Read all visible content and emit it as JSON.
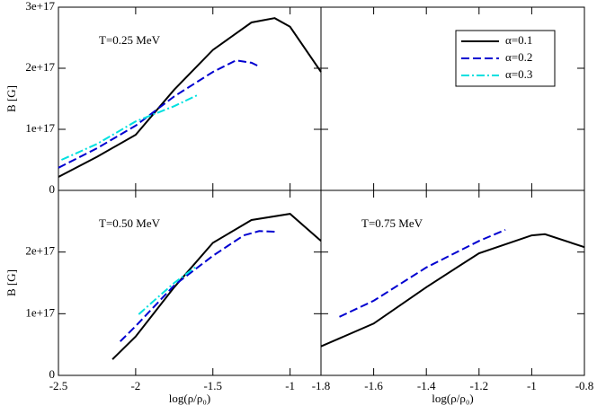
{
  "chart_data": [
    {
      "type": "line",
      "annotation": "T=0.25 MeV",
      "ylabel": "B [G]",
      "xlim": [
        -2.5,
        -0.8
      ],
      "ylim": [
        0,
        3e+17
      ],
      "yticks": [
        0,
        {
          "value": 1e+17,
          "label": "1e+17"
        },
        {
          "value": 2e+17,
          "label": "2e+17"
        },
        {
          "value": 3e+17,
          "label": "3e+17"
        }
      ],
      "series": [
        {
          "name": "α=0.1",
          "color": "#000000",
          "style": "solid",
          "x": [
            -2.5,
            -2.25,
            -2,
            -1.75,
            -1.5,
            -1.25,
            -1.1,
            -1,
            -0.8
          ],
          "values": [
            2.2e+16,
            5.5e+16,
            9.1e+16,
            1.65e+17,
            2.3e+17,
            2.75e+17,
            2.82e+17,
            2.68e+17,
            1.94e+17
          ]
        },
        {
          "name": "α=0.2",
          "color": "#0000d0",
          "style": "dashed",
          "x": [
            -2.5,
            -2.25,
            -2,
            -1.75,
            -1.5,
            -1.35,
            -1.25,
            -1.2
          ],
          "values": [
            3.7e+16,
            6.9e+16,
            1.06e+17,
            1.54e+17,
            1.94e+17,
            2.13e+17,
            2.09e+17,
            2.03e+17
          ]
        },
        {
          "name": "α=0.3",
          "color": "#00e0e0",
          "style": "dashdot",
          "x": [
            -2.48,
            -2.25,
            -2,
            -1.75,
            -1.6
          ],
          "values": [
            5e+16,
            7.6e+16,
            1.13e+17,
            1.38e+17,
            1.56e+17
          ]
        }
      ]
    },
    {
      "type": "line",
      "annotation": "T=0.50 MeV",
      "ylabel": "B [G]",
      "xlabel": "log(ρ/ρ₀)",
      "xlim": [
        -2.5,
        -0.8
      ],
      "ylim": [
        0,
        3e+17
      ],
      "xticks": [
        -2.5,
        -2,
        -1.5,
        -1
      ],
      "yticks": [
        0,
        {
          "value": 1e+17,
          "label": "1e+17"
        },
        {
          "value": 2e+17,
          "label": "2e+17"
        }
      ],
      "series": [
        {
          "color": "#000000",
          "style": "solid",
          "x": [
            -2.15,
            -2,
            -1.75,
            -1.5,
            -1.25,
            -1.0,
            -0.8
          ],
          "values": [
            2.6e+16,
            6.3e+16,
            1.43e+17,
            2.15e+17,
            2.52e+17,
            2.62e+17,
            2.18e+17
          ]
        },
        {
          "color": "#0000d0",
          "style": "dashed",
          "x": [
            -2.1,
            -2,
            -1.75,
            -1.5,
            -1.3,
            -1.2,
            -1.1
          ],
          "values": [
            5.5e+16,
            8e+16,
            1.46e+17,
            1.94e+17,
            2.27e+17,
            2.34e+17,
            2.33e+17
          ]
        },
        {
          "color": "#00e0e0",
          "style": "dashdot",
          "x": [
            -1.98,
            -1.85,
            -1.75,
            -1.6
          ],
          "values": [
            9.9e+16,
            1.28e+17,
            1.5e+17,
            1.78e+17
          ]
        }
      ]
    },
    {
      "type": "line",
      "annotation": "T=0.75 MeV",
      "xlabel": "log(ρ/ρ₀)",
      "xlim": [
        -1.8,
        -0.8
      ],
      "ylim": [
        0,
        3e+17
      ],
      "xticks": [
        -1.8,
        -1.6,
        -1.4,
        -1.2,
        -1,
        -0.8
      ],
      "series": [
        {
          "color": "#000000",
          "style": "solid",
          "x": [
            -1.8,
            -1.6,
            -1.4,
            -1.2,
            -1.0,
            -0.95,
            -0.8
          ],
          "values": [
            4.7e+16,
            8.4e+16,
            1.43e+17,
            1.98e+17,
            2.27e+17,
            2.29e+17,
            2.08e+17
          ]
        },
        {
          "color": "#0000d0",
          "style": "dashed",
          "x": [
            -1.73,
            -1.6,
            -1.4,
            -1.2,
            -1.1
          ],
          "values": [
            9.5e+16,
            1.21e+17,
            1.75e+17,
            2.18e+17,
            2.36e+17
          ]
        }
      ]
    }
  ]
}
